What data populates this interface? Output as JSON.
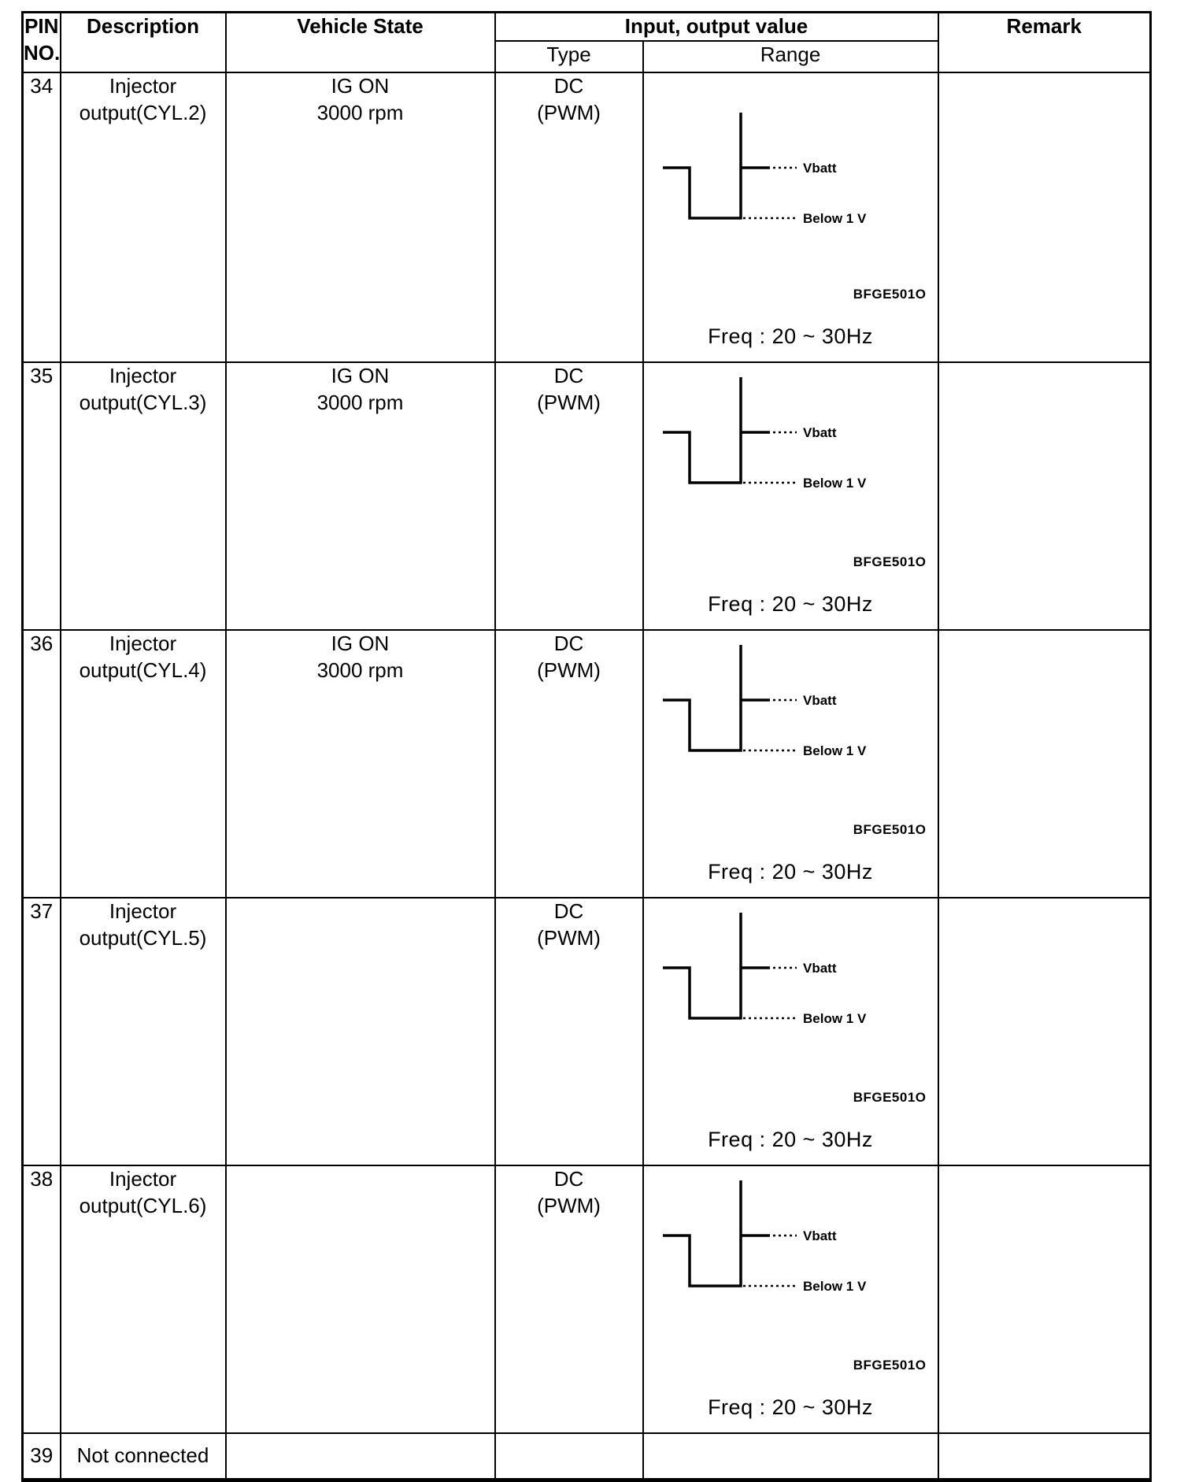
{
  "table": {
    "header": {
      "pin_line1": "PIN",
      "pin_line2": "NO.",
      "description": "Description",
      "vehicle_state": "Vehicle State",
      "io_value": "Input, output value",
      "type": "Type",
      "range": "Range",
      "remark": "Remark"
    },
    "rows": [
      {
        "pin": "34",
        "description": [
          "Injector",
          "output(CYL.2)"
        ],
        "vehicle_state": [
          "IG ON",
          "3000 rpm"
        ],
        "type": [
          "DC",
          "(PWM)"
        ],
        "waveform": {
          "high_label": "Vbatt",
          "low_label": "Below 1 V",
          "code": "BFGE501O",
          "freq": "Freq :  20 ~ 30Hz"
        },
        "remark": ""
      },
      {
        "pin": "35",
        "description": [
          "Injector",
          "output(CYL.3)"
        ],
        "vehicle_state": [
          "IG ON",
          "3000 rpm"
        ],
        "type": [
          "DC",
          "(PWM)"
        ],
        "waveform": {
          "high_label": "Vbatt",
          "low_label": "Below 1 V",
          "code": "BFGE501O",
          "freq": "Freq :  20 ~ 30Hz"
        },
        "remark": ""
      },
      {
        "pin": "36",
        "description": [
          "Injector",
          "output(CYL.4)"
        ],
        "vehicle_state": [
          "IG ON",
          "3000 rpm"
        ],
        "type": [
          "DC",
          "(PWM)"
        ],
        "waveform": {
          "high_label": "Vbatt",
          "low_label": "Below 1 V",
          "code": "BFGE501O",
          "freq": "Freq :  20 ~ 30Hz"
        },
        "remark": ""
      },
      {
        "pin": "37",
        "description": [
          "Injector",
          "output(CYL.5)"
        ],
        "vehicle_state": [],
        "type": [
          "DC",
          "(PWM)"
        ],
        "waveform": {
          "high_label": "Vbatt",
          "low_label": "Below 1 V",
          "code": "BFGE501O",
          "freq": "Freq :  20 ~ 30Hz"
        },
        "remark": ""
      },
      {
        "pin": "38",
        "description": [
          "Injector",
          "output(CYL.6)"
        ],
        "vehicle_state": [],
        "type": [
          "DC",
          "(PWM)"
        ],
        "waveform": {
          "high_label": "Vbatt",
          "low_label": "Below 1 V",
          "code": "BFGE501O",
          "freq": "Freq :  20 ~ 30Hz"
        },
        "remark": ""
      },
      {
        "pin": "39",
        "description": [
          "Not connected"
        ],
        "vehicle_state": [],
        "type": [],
        "waveform": null,
        "remark": ""
      }
    ]
  }
}
